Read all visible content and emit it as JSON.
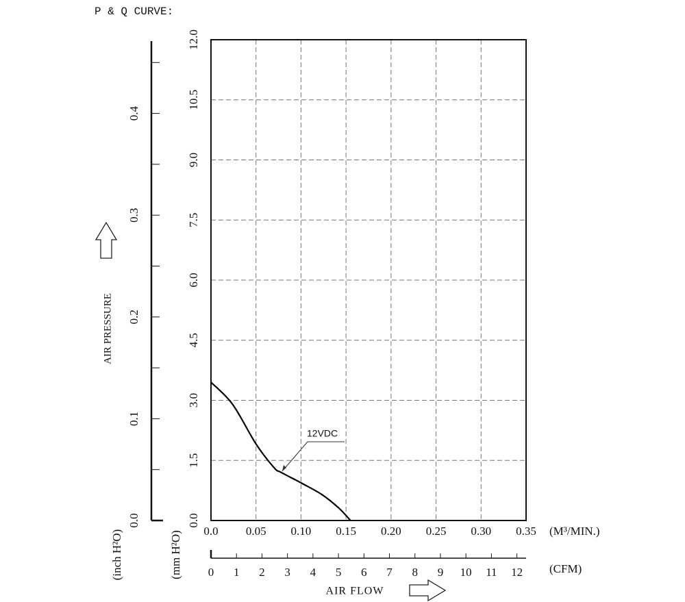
{
  "chart_data": {
    "type": "line",
    "title": "P & Q CURVE:",
    "y_label": "AIR PRESSURE",
    "x_label": "AIR FLOW",
    "y_unit": "(mm H²O)",
    "y2_unit": "(inch H²O)",
    "x_unit": "(M³/MIN.)",
    "x2_unit": "(CFM)",
    "annotation": "12VDC",
    "grid": true,
    "xlim": [
      0,
      0.35
    ],
    "xticks": [
      {
        "value": 0,
        "label": "0.0"
      },
      0.05,
      {
        "value": 0.1,
        "label": "0.10"
      },
      0.15,
      {
        "value": 0.2,
        "label": "0.20"
      },
      0.25,
      {
        "value": 0.3,
        "label": "0.30"
      },
      0.35
    ],
    "ylim": [
      0,
      12
    ],
    "yticks": [
      {
        "value": 0,
        "label": "0.0"
      },
      1.5,
      {
        "value": 3,
        "label": "3.0"
      },
      4.5,
      {
        "value": 6,
        "label": "6.0"
      },
      7.5,
      {
        "value": 9,
        "label": "9.0"
      },
      10.5,
      {
        "value": 12,
        "label": "12.0"
      }
    ],
    "y2lim": [
      0,
      0.4724
    ],
    "y2ticks": [
      {
        "value": 0,
        "label": "0.0"
      },
      0.1,
      0.2,
      0.3,
      0.4
    ],
    "y2minorticks": [
      0.05,
      0.15,
      0.25,
      0.35,
      0.45
    ],
    "x2lim": [
      0,
      12.36
    ],
    "x2ticks": [
      0,
      1,
      2,
      3,
      4,
      5,
      6,
      7,
      8,
      9,
      10,
      11,
      12
    ],
    "series": [
      {
        "name": "12VDC",
        "color": "#000000",
        "x": [
          0,
          0.024,
          0.05,
          0.07,
          0.078,
          0.1,
          0.123,
          0.142,
          0.155
        ],
        "values": [
          3.45,
          2.9,
          1.91,
          1.32,
          1.2,
          0.94,
          0.65,
          0.31,
          0
        ]
      }
    ]
  }
}
